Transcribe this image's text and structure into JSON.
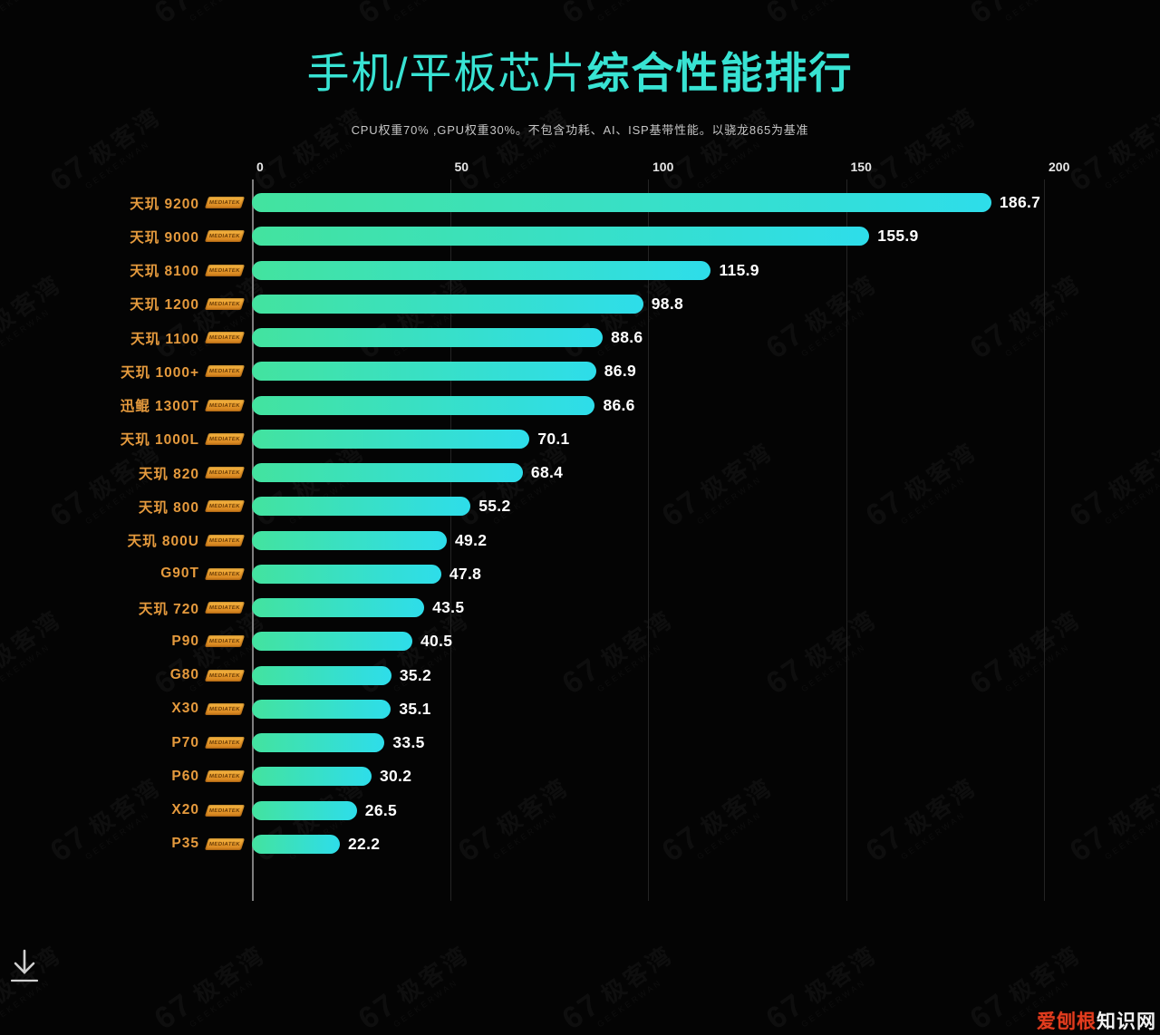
{
  "title": {
    "part1": "手机/平板芯片",
    "part2": "综合性能排行"
  },
  "subtitle": "CPU权重70% ,GPU权重30%。不包含功耗、AI、ISP基带性能。以骁龙865为基准",
  "chart_data": {
    "type": "bar",
    "orientation": "horizontal",
    "title": "手机/平板芯片综合性能排行",
    "categories": [
      "天玑 9200",
      "天玑 9000",
      "天玑 8100",
      "天玑 1200",
      "天玑 1100",
      "天玑 1000+",
      "迅鲲 1300T",
      "天玑 1000L",
      "天玑 820",
      "天玑 800",
      "天玑 800U",
      "G90T",
      "天玑 720",
      "P90",
      "G80",
      "X30",
      "P70",
      "P60",
      "X20",
      "P35"
    ],
    "values": [
      186.7,
      155.9,
      115.9,
      98.8,
      88.6,
      86.9,
      86.6,
      70.1,
      68.4,
      55.2,
      49.2,
      47.8,
      43.5,
      40.5,
      35.2,
      35.1,
      33.5,
      30.2,
      26.5,
      22.2
    ],
    "x_ticks": [
      0,
      50,
      100,
      150,
      200
    ],
    "xlim": [
      0,
      200
    ],
    "grid": "vertical",
    "legend": "none",
    "bar_gradient": [
      "#43e39f",
      "#2eddea"
    ],
    "value_label_color": "#ffffff",
    "category_label_color": "#e59a3d"
  },
  "badge": {
    "label": "MEDIATEK"
  },
  "colors": {
    "background": "#040404",
    "title": "#38e3d3",
    "subtitle": "#c6c6c6",
    "axis_line": "#7d7d7d",
    "gridline": "#242424",
    "badge_orange": "#e99c2c",
    "site_mark_red": "#e23c1e"
  },
  "watermark": {
    "logo": "67",
    "cn": "极客湾",
    "en": "GEEKERWAN"
  },
  "footer": {
    "site_red": "爱刨根",
    "site_white": "知识网"
  }
}
